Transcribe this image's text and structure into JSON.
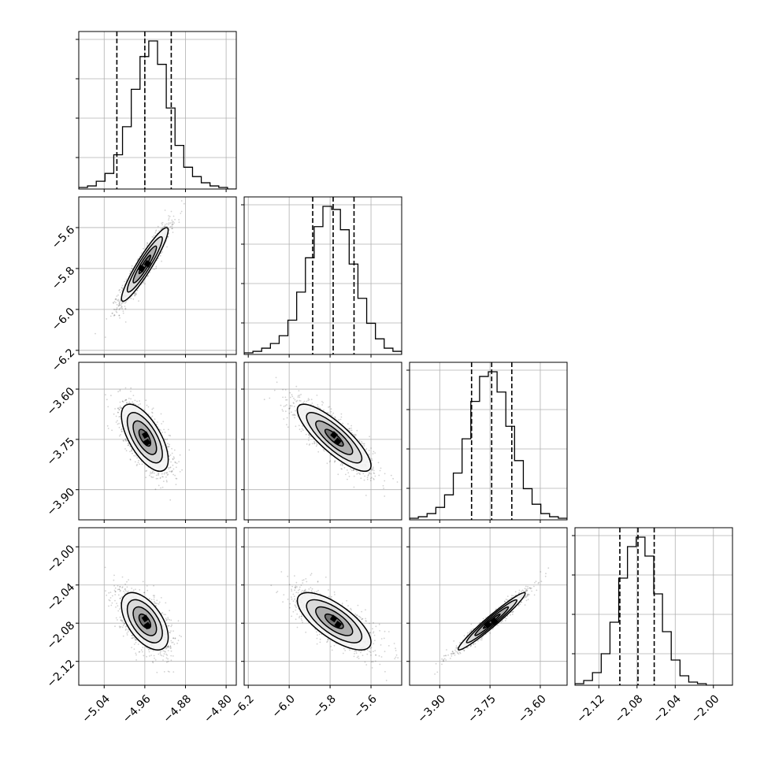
{
  "chart_data": {
    "type": "corner",
    "title": "",
    "grid": true,
    "colors": {
      "line": "#000000",
      "quantile": "#000000",
      "grid": "#b0b0b0",
      "point": "#000000"
    },
    "parameters": [
      {
        "name": "p1",
        "label": "",
        "lim": [
          -5.09,
          -4.78
        ],
        "ticks": [
          "−5.04",
          "−4.96",
          "−4.88",
          "−4.80"
        ],
        "tick_values": [
          -5.04,
          -4.96,
          -4.88,
          -4.8
        ],
        "center": -4.96,
        "sigma": 0.023,
        "quantiles": [
          -5.015,
          -4.96,
          -4.908
        ]
      },
      {
        "name": "p2",
        "label": "",
        "lim": [
          -6.22,
          -5.45
        ],
        "ticks": [
          "−6.2",
          "−6.0",
          "−5.8",
          "−5.6"
        ],
        "tick_values": [
          -6.2,
          -6.0,
          -5.8,
          -5.6
        ],
        "center": -5.78,
        "sigma": 0.09,
        "quantiles": [
          -5.885,
          -5.785,
          -5.683
        ]
      },
      {
        "name": "p3",
        "label": "",
        "lim": [
          -3.99,
          -3.52
        ],
        "ticks": [
          "−3.90",
          "−3.75",
          "−3.60"
        ],
        "tick_values": [
          -3.9,
          -3.75,
          -3.6
        ],
        "center": -3.745,
        "sigma": 0.05,
        "quantiles": [
          -3.805,
          -3.745,
          -3.685
        ]
      },
      {
        "name": "p4",
        "label": "",
        "lim": [
          -2.145,
          -1.98
        ],
        "ticks": [
          "−2.12",
          "−2.08",
          "−2.04",
          "−2.00"
        ],
        "tick_values": [
          -2.12,
          -2.08,
          -2.04,
          -2.0
        ],
        "center": -2.078,
        "sigma": 0.015,
        "quantiles": [
          -2.098,
          -2.079,
          -2.062
        ]
      }
    ],
    "correlations": {
      "1-0": 0.93,
      "2-0": -0.65,
      "2-1": -0.83,
      "3-0": -0.55,
      "3-1": -0.72,
      "3-2": 0.97
    },
    "histograms": [
      [
        1,
        2,
        5,
        10,
        22,
        40,
        64,
        85,
        95,
        80,
        52,
        28,
        14,
        8,
        4,
        2,
        1,
        0
      ],
      [
        1,
        2,
        4,
        7,
        12,
        22,
        40,
        62,
        82,
        95,
        93,
        80,
        58,
        36,
        20,
        10,
        4,
        2
      ],
      [
        1,
        2,
        4,
        8,
        16,
        30,
        52,
        76,
        92,
        95,
        82,
        60,
        38,
        20,
        10,
        4,
        2,
        1
      ],
      [
        1,
        3,
        8,
        20,
        40,
        68,
        88,
        94,
        82,
        58,
        34,
        16,
        6,
        2,
        1,
        0,
        0,
        0
      ]
    ],
    "contour_levels_sigma": [
      0.5,
      1.0,
      1.5,
      2.0
    ],
    "n_scatter": 1400
  }
}
